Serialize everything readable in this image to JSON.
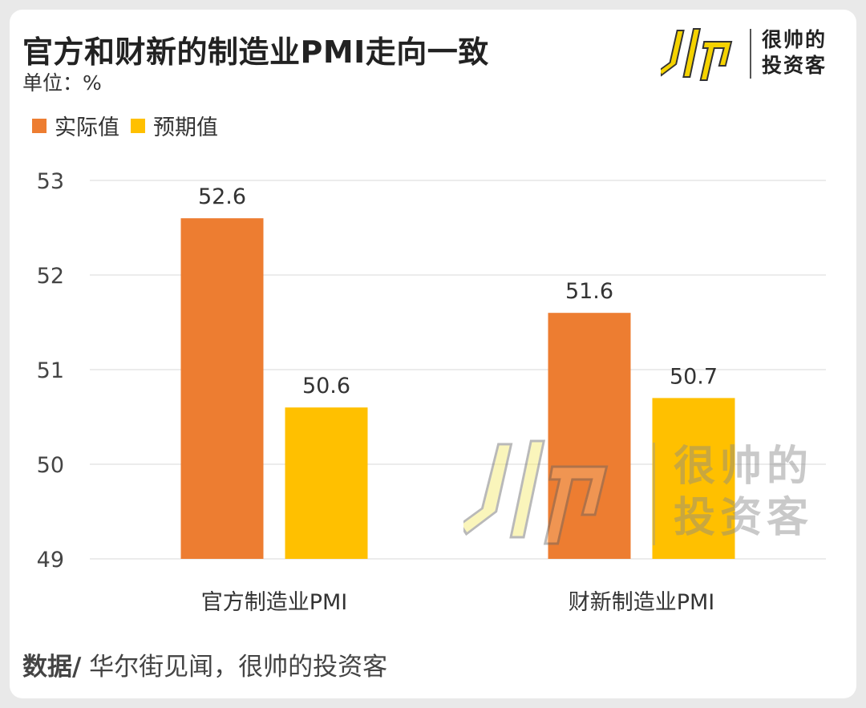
{
  "header": {
    "title": "官方和财新的制造业PMI走向一致",
    "unit": "单位：%"
  },
  "brand": {
    "line1": "很帅的",
    "line2": "投资客",
    "accent_color": "#F5D300"
  },
  "legend": [
    {
      "label": "实际值",
      "color": "#ED7D31"
    },
    {
      "label": "预期值",
      "color": "#FFC000"
    }
  ],
  "chart_data": {
    "type": "bar",
    "title": "官方和财新的制造业PMI走向一致",
    "categories": [
      "官方制造业PMI",
      "财新制造业PMI"
    ],
    "series": [
      {
        "name": "实际值",
        "values": [
          52.6,
          51.6
        ],
        "color": "#ED7D31"
      },
      {
        "name": "预期值",
        "values": [
          50.6,
          50.7
        ],
        "color": "#FFC000"
      }
    ],
    "ylim": [
      49,
      53
    ],
    "yticks": [
      49,
      50,
      51,
      52,
      53
    ],
    "grid": true,
    "legend_position": "top-left"
  },
  "footer": {
    "source_prefix": "数据/",
    "source_text": " 华尔街见闻，很帅的投资客"
  }
}
